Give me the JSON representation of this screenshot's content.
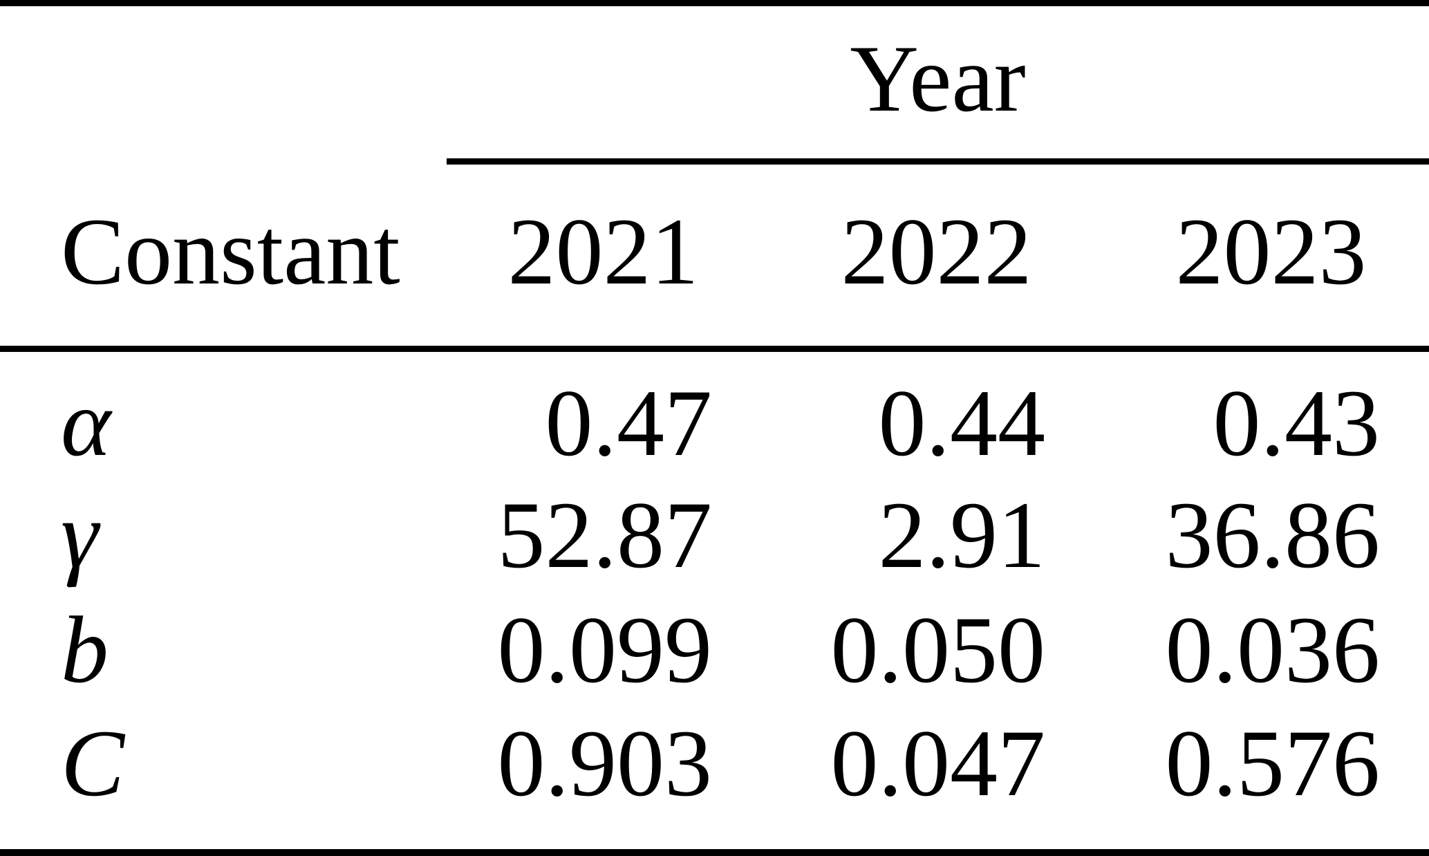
{
  "page": {
    "background": "#ffffff",
    "text_color": "#000000",
    "rule_color": "#000000"
  },
  "table": {
    "group_header": {
      "label": "Year"
    },
    "stub_header": "Constant",
    "columns": [
      "2021",
      "2022",
      "2023"
    ],
    "rows": [
      {
        "label": "α",
        "values": [
          "0.47",
          "0.44",
          "0.43"
        ]
      },
      {
        "label": "γ",
        "values": [
          "52.87",
          "2.91",
          "36.86"
        ]
      },
      {
        "label": "b",
        "values": [
          "0.099",
          "0.050",
          "0.036"
        ]
      },
      {
        "label": "C",
        "values": [
          "0.903",
          "0.047",
          "0.576"
        ]
      }
    ]
  }
}
